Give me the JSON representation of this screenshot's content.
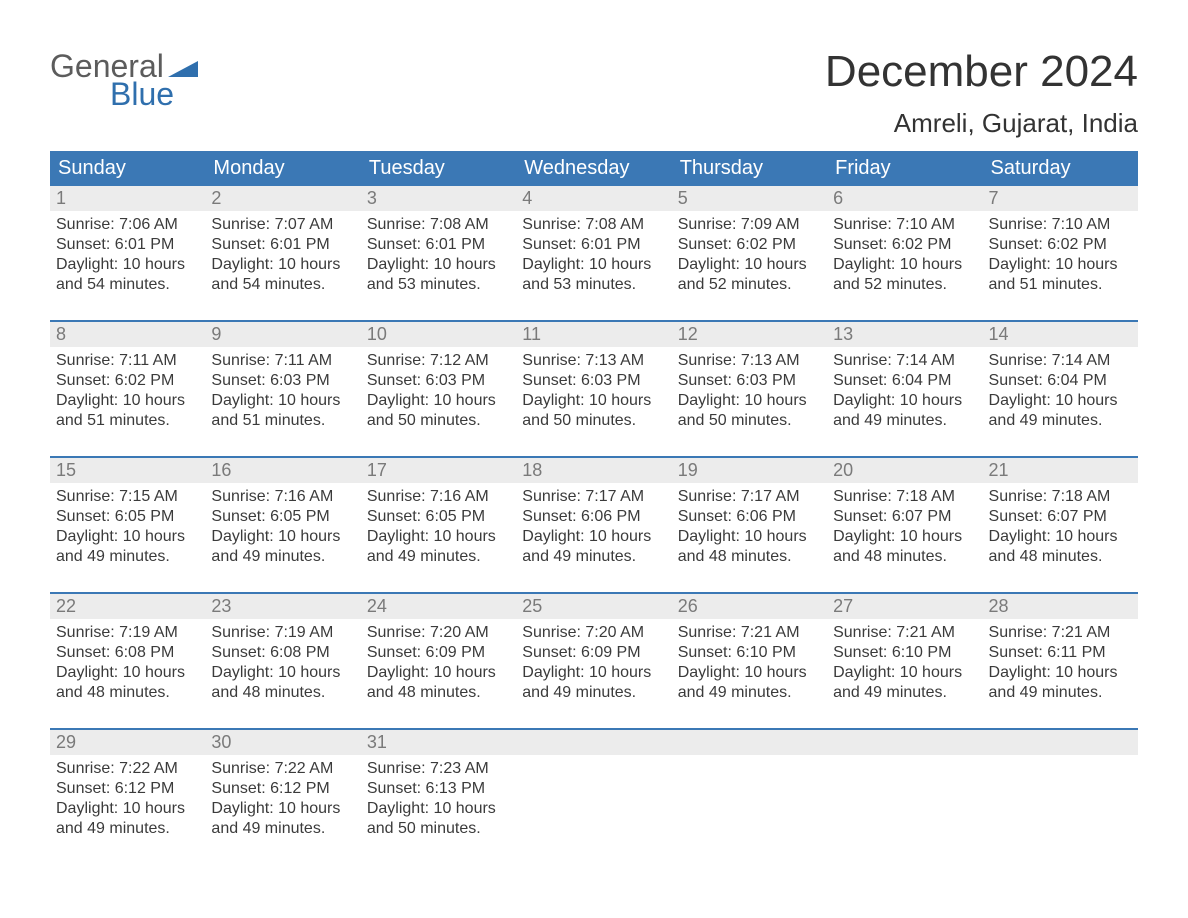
{
  "logo": {
    "word1": "General",
    "word2": "Blue",
    "triangle_color": "#2f6fad",
    "text_color_1": "#5c5c5c",
    "text_color_2": "#2f6fad"
  },
  "title": "December 2024",
  "location": "Amreli, Gujarat, India",
  "colors": {
    "header_bg": "#3b78b5",
    "header_text": "#ffffff",
    "date_bar_bg": "#ececec",
    "date_bar_text": "#7a7a7a",
    "week_border": "#3b78b5",
    "body_text": "#3b3b3b"
  },
  "day_headers": [
    "Sunday",
    "Monday",
    "Tuesday",
    "Wednesday",
    "Thursday",
    "Friday",
    "Saturday"
  ],
  "weeks": [
    [
      {
        "date": "1",
        "sunrise": "Sunrise: 7:06 AM",
        "sunset": "Sunset: 6:01 PM",
        "daylight1": "Daylight: 10 hours",
        "daylight2": "and 54 minutes."
      },
      {
        "date": "2",
        "sunrise": "Sunrise: 7:07 AM",
        "sunset": "Sunset: 6:01 PM",
        "daylight1": "Daylight: 10 hours",
        "daylight2": "and 54 minutes."
      },
      {
        "date": "3",
        "sunrise": "Sunrise: 7:08 AM",
        "sunset": "Sunset: 6:01 PM",
        "daylight1": "Daylight: 10 hours",
        "daylight2": "and 53 minutes."
      },
      {
        "date": "4",
        "sunrise": "Sunrise: 7:08 AM",
        "sunset": "Sunset: 6:01 PM",
        "daylight1": "Daylight: 10 hours",
        "daylight2": "and 53 minutes."
      },
      {
        "date": "5",
        "sunrise": "Sunrise: 7:09 AM",
        "sunset": "Sunset: 6:02 PM",
        "daylight1": "Daylight: 10 hours",
        "daylight2": "and 52 minutes."
      },
      {
        "date": "6",
        "sunrise": "Sunrise: 7:10 AM",
        "sunset": "Sunset: 6:02 PM",
        "daylight1": "Daylight: 10 hours",
        "daylight2": "and 52 minutes."
      },
      {
        "date": "7",
        "sunrise": "Sunrise: 7:10 AM",
        "sunset": "Sunset: 6:02 PM",
        "daylight1": "Daylight: 10 hours",
        "daylight2": "and 51 minutes."
      }
    ],
    [
      {
        "date": "8",
        "sunrise": "Sunrise: 7:11 AM",
        "sunset": "Sunset: 6:02 PM",
        "daylight1": "Daylight: 10 hours",
        "daylight2": "and 51 minutes."
      },
      {
        "date": "9",
        "sunrise": "Sunrise: 7:11 AM",
        "sunset": "Sunset: 6:03 PM",
        "daylight1": "Daylight: 10 hours",
        "daylight2": "and 51 minutes."
      },
      {
        "date": "10",
        "sunrise": "Sunrise: 7:12 AM",
        "sunset": "Sunset: 6:03 PM",
        "daylight1": "Daylight: 10 hours",
        "daylight2": "and 50 minutes."
      },
      {
        "date": "11",
        "sunrise": "Sunrise: 7:13 AM",
        "sunset": "Sunset: 6:03 PM",
        "daylight1": "Daylight: 10 hours",
        "daylight2": "and 50 minutes."
      },
      {
        "date": "12",
        "sunrise": "Sunrise: 7:13 AM",
        "sunset": "Sunset: 6:03 PM",
        "daylight1": "Daylight: 10 hours",
        "daylight2": "and 50 minutes."
      },
      {
        "date": "13",
        "sunrise": "Sunrise: 7:14 AM",
        "sunset": "Sunset: 6:04 PM",
        "daylight1": "Daylight: 10 hours",
        "daylight2": "and 49 minutes."
      },
      {
        "date": "14",
        "sunrise": "Sunrise: 7:14 AM",
        "sunset": "Sunset: 6:04 PM",
        "daylight1": "Daylight: 10 hours",
        "daylight2": "and 49 minutes."
      }
    ],
    [
      {
        "date": "15",
        "sunrise": "Sunrise: 7:15 AM",
        "sunset": "Sunset: 6:05 PM",
        "daylight1": "Daylight: 10 hours",
        "daylight2": "and 49 minutes."
      },
      {
        "date": "16",
        "sunrise": "Sunrise: 7:16 AM",
        "sunset": "Sunset: 6:05 PM",
        "daylight1": "Daylight: 10 hours",
        "daylight2": "and 49 minutes."
      },
      {
        "date": "17",
        "sunrise": "Sunrise: 7:16 AM",
        "sunset": "Sunset: 6:05 PM",
        "daylight1": "Daylight: 10 hours",
        "daylight2": "and 49 minutes."
      },
      {
        "date": "18",
        "sunrise": "Sunrise: 7:17 AM",
        "sunset": "Sunset: 6:06 PM",
        "daylight1": "Daylight: 10 hours",
        "daylight2": "and 49 minutes."
      },
      {
        "date": "19",
        "sunrise": "Sunrise: 7:17 AM",
        "sunset": "Sunset: 6:06 PM",
        "daylight1": "Daylight: 10 hours",
        "daylight2": "and 48 minutes."
      },
      {
        "date": "20",
        "sunrise": "Sunrise: 7:18 AM",
        "sunset": "Sunset: 6:07 PM",
        "daylight1": "Daylight: 10 hours",
        "daylight2": "and 48 minutes."
      },
      {
        "date": "21",
        "sunrise": "Sunrise: 7:18 AM",
        "sunset": "Sunset: 6:07 PM",
        "daylight1": "Daylight: 10 hours",
        "daylight2": "and 48 minutes."
      }
    ],
    [
      {
        "date": "22",
        "sunrise": "Sunrise: 7:19 AM",
        "sunset": "Sunset: 6:08 PM",
        "daylight1": "Daylight: 10 hours",
        "daylight2": "and 48 minutes."
      },
      {
        "date": "23",
        "sunrise": "Sunrise: 7:19 AM",
        "sunset": "Sunset: 6:08 PM",
        "daylight1": "Daylight: 10 hours",
        "daylight2": "and 48 minutes."
      },
      {
        "date": "24",
        "sunrise": "Sunrise: 7:20 AM",
        "sunset": "Sunset: 6:09 PM",
        "daylight1": "Daylight: 10 hours",
        "daylight2": "and 48 minutes."
      },
      {
        "date": "25",
        "sunrise": "Sunrise: 7:20 AM",
        "sunset": "Sunset: 6:09 PM",
        "daylight1": "Daylight: 10 hours",
        "daylight2": "and 49 minutes."
      },
      {
        "date": "26",
        "sunrise": "Sunrise: 7:21 AM",
        "sunset": "Sunset: 6:10 PM",
        "daylight1": "Daylight: 10 hours",
        "daylight2": "and 49 minutes."
      },
      {
        "date": "27",
        "sunrise": "Sunrise: 7:21 AM",
        "sunset": "Sunset: 6:10 PM",
        "daylight1": "Daylight: 10 hours",
        "daylight2": "and 49 minutes."
      },
      {
        "date": "28",
        "sunrise": "Sunrise: 7:21 AM",
        "sunset": "Sunset: 6:11 PM",
        "daylight1": "Daylight: 10 hours",
        "daylight2": "and 49 minutes."
      }
    ],
    [
      {
        "date": "29",
        "sunrise": "Sunrise: 7:22 AM",
        "sunset": "Sunset: 6:12 PM",
        "daylight1": "Daylight: 10 hours",
        "daylight2": "and 49 minutes."
      },
      {
        "date": "30",
        "sunrise": "Sunrise: 7:22 AM",
        "sunset": "Sunset: 6:12 PM",
        "daylight1": "Daylight: 10 hours",
        "daylight2": "and 49 minutes."
      },
      {
        "date": "31",
        "sunrise": "Sunrise: 7:23 AM",
        "sunset": "Sunset: 6:13 PM",
        "daylight1": "Daylight: 10 hours",
        "daylight2": "and 50 minutes."
      },
      null,
      null,
      null,
      null
    ]
  ]
}
